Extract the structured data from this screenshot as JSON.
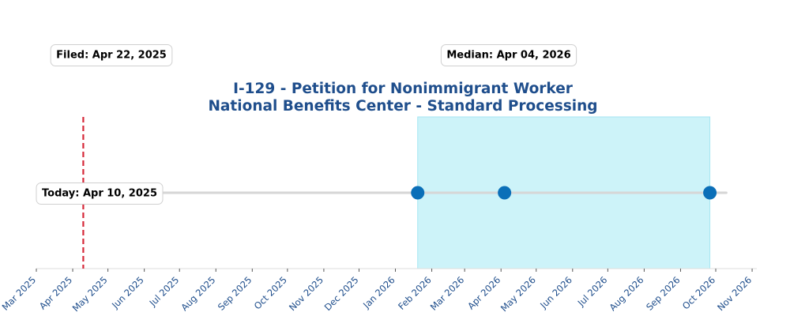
{
  "chart_data": {
    "type": "timeline",
    "title": [
      "I-129 - Petition for Nonimmigrant Worker",
      "National Benefits Center - Standard Processing"
    ],
    "xlabel": "",
    "ylabel": "",
    "x_ticks": [
      "Mar 2025",
      "Apr 2025",
      "May 2025",
      "Jun 2025",
      "Jul 2025",
      "Aug 2025",
      "Sep 2025",
      "Oct 2025",
      "Nov 2025",
      "Dec 2025",
      "Jan 2026",
      "Feb 2026",
      "Mar 2026",
      "Apr 2026",
      "May 2026",
      "Jun 2026",
      "Jul 2026",
      "Aug 2026",
      "Sep 2026",
      "Oct 2026",
      "Nov 2026"
    ],
    "xlim": [
      "2025-03-01",
      "2026-11-05"
    ],
    "today": {
      "date": "2025-04-10",
      "label": "Today: Apr 10, 2025"
    },
    "filed": {
      "date": "2025-04-22",
      "label": "Filed: Apr 22, 2025"
    },
    "median": {
      "date": "2026-04-04",
      "label": "Median: Apr 04, 2026"
    },
    "processing_range": {
      "start": "2026-01-20",
      "end": "2026-09-26"
    },
    "points": [
      "2026-01-20",
      "2026-04-04",
      "2026-09-26"
    ],
    "line_range": [
      "2025-04-22",
      "2026-10-10"
    ],
    "colors": {
      "title": "#1f4e8c",
      "today_line": "#d62839",
      "range_fill": "#cdf3f9",
      "range_edge": "#a6e6f2",
      "point": "#0b6fb8",
      "filed_point": "#c9dff2",
      "track": "#d6d6d6",
      "tick_label": "#1f4e8c"
    }
  }
}
